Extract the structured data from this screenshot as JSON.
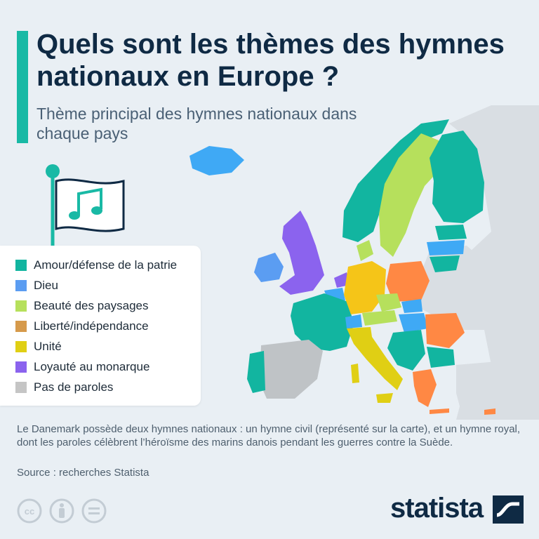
{
  "header": {
    "title": "Quels sont les thèmes des hymnes nationaux en Europe ?",
    "subtitle": "Thème principal des hymnes nationaux dans chaque pays"
  },
  "legend": {
    "items": [
      {
        "label": "Amour/défense de la patrie",
        "color": "#12b5a0"
      },
      {
        "label": "Dieu",
        "color": "#5b9df2"
      },
      {
        "label": "Beauté des paysages",
        "color": "#b6e05c"
      },
      {
        "label": "Liberté/indépendance",
        "color": "#d69a4b"
      },
      {
        "label": "Unité",
        "color": "#e0cf14"
      },
      {
        "label": "Loyauté au monarque",
        "color": "#8b63ee"
      },
      {
        "label": "Pas de paroles",
        "color": "#c5c5c5"
      }
    ]
  },
  "footer": {
    "note": "Le Danemark possède deux hymnes nationaux : un hymne civil (représenté sur la carte), et un hymne royal, dont les paroles célèbrent l’héroïsme des marins danois pendant les guerres contre la Suède.",
    "source": "Source : recherches Statista",
    "brand": "statista"
  },
  "licence_icons": [
    "creative-commons-icon",
    "attribution-icon",
    "no-derivatives-icon"
  ],
  "map_colors": {
    "ocean": "#e9eff4",
    "non_europe": "#d9dee3",
    "patrie": "#12b5a0",
    "dieu": "#3fa9f5",
    "paysages": "#b6e05c",
    "liberte": "#ff8844",
    "unite": "#f5c518",
    "monarque": "#8b63ee",
    "sans_paroles": "#bfc3c6"
  }
}
